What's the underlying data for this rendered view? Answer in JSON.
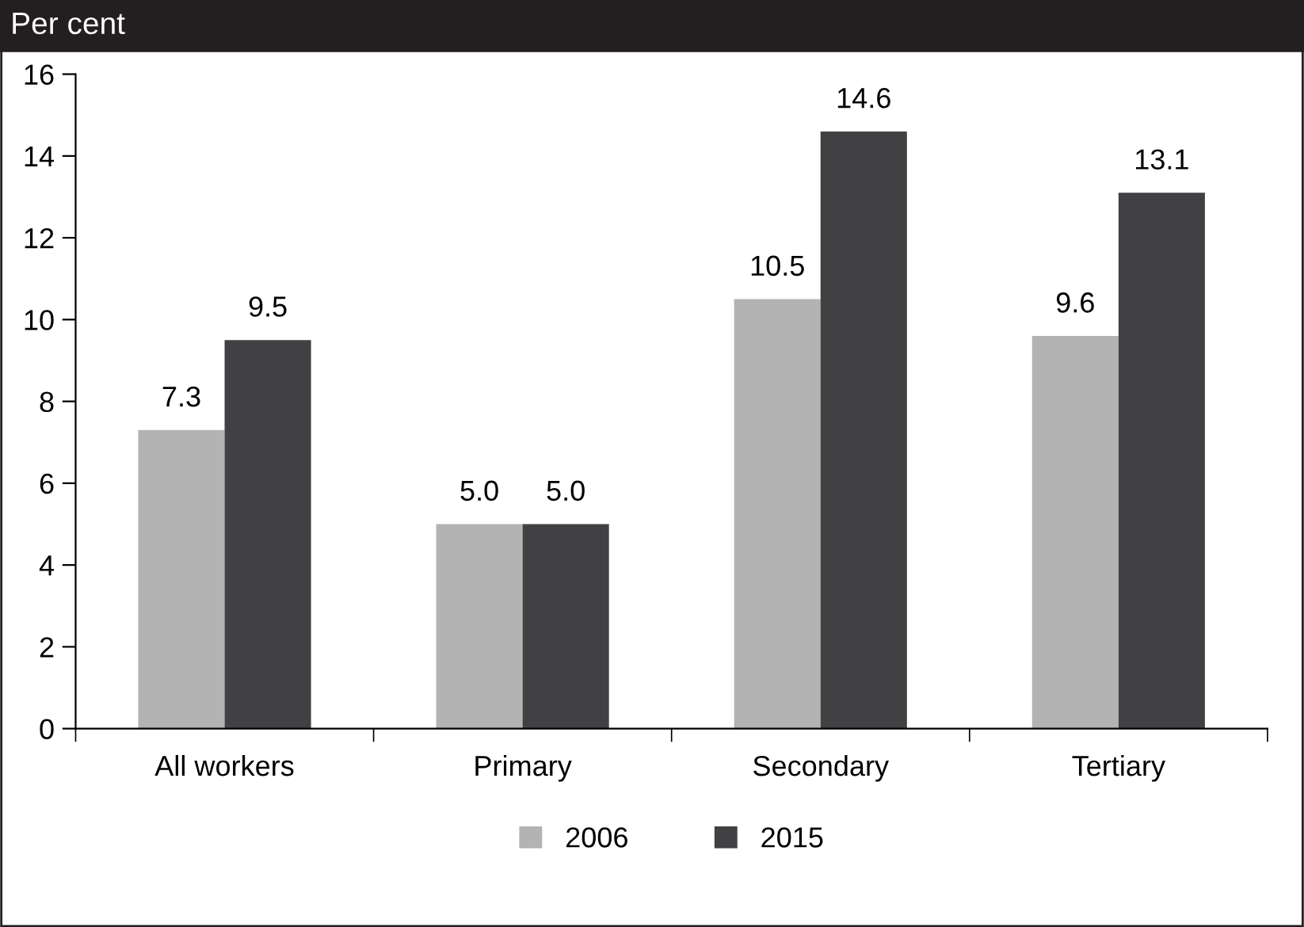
{
  "chart_data": {
    "type": "bar",
    "ylabel": "Per cent",
    "categories": [
      "All workers",
      "Primary",
      "Secondary",
      "Tertiary"
    ],
    "series": [
      {
        "name": "2006",
        "color": "#b3b3b3",
        "values": [
          7.3,
          5.0,
          10.5,
          9.6
        ],
        "value_labels": [
          "7.3",
          "5.0",
          "10.5",
          "9.6"
        ]
      },
      {
        "name": "2015",
        "color": "#414042",
        "values": [
          9.5,
          5.0,
          14.6,
          13.1
        ],
        "value_labels": [
          "9.5",
          "5.0",
          "14.6",
          "13.1"
        ]
      }
    ],
    "ylim": [
      0,
      16
    ],
    "yticks": [
      0,
      2,
      4,
      6,
      8,
      10,
      12,
      14,
      16
    ],
    "grid": false,
    "legend": "bottom"
  }
}
